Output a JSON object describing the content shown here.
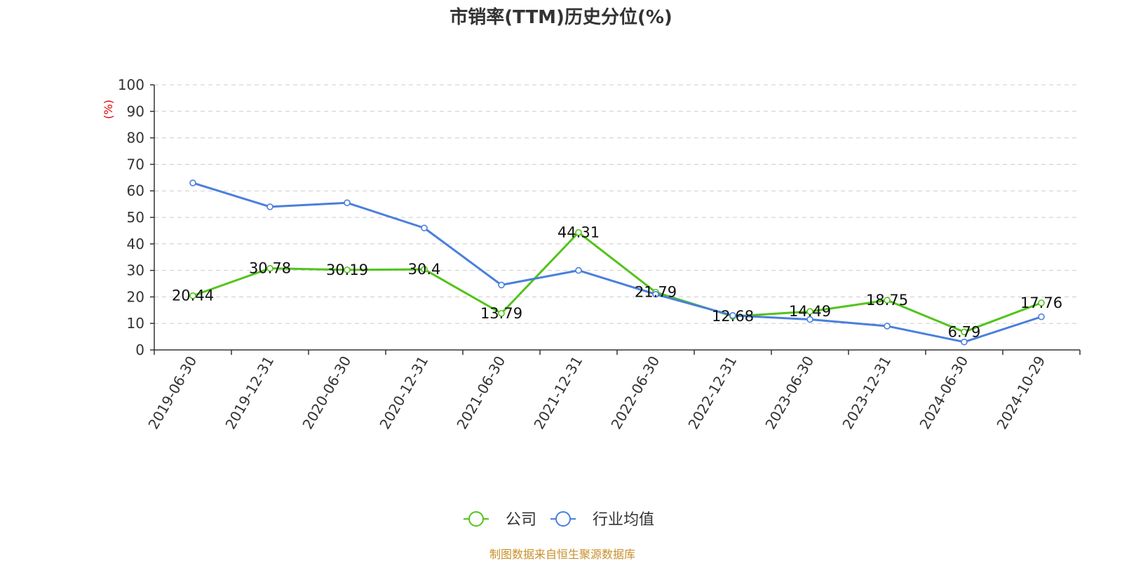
{
  "chart_data": {
    "type": "line",
    "title": "市销率(TTM)历史分位(%)",
    "ylabel": "(%)",
    "ylim": [
      0,
      100
    ],
    "yticks": [
      0,
      10,
      20,
      30,
      40,
      50,
      60,
      70,
      80,
      90,
      100
    ],
    "categories": [
      "2019-06-30",
      "2019-12-31",
      "2020-06-30",
      "2020-12-31",
      "2021-06-30",
      "2021-12-31",
      "2022-06-30",
      "2022-12-31",
      "2023-06-30",
      "2023-12-31",
      "2024-06-30",
      "2024-10-29"
    ],
    "grid": true,
    "legend_position": "bottom",
    "series": [
      {
        "name": "公司",
        "color": "#52c41a",
        "values": [
          20.44,
          30.78,
          30.19,
          30.4,
          13.79,
          44.31,
          21.79,
          12.68,
          14.49,
          18.75,
          6.79,
          17.76
        ],
        "labels": [
          "20.44",
          "30.78",
          "30.19",
          "30.4",
          "13.79",
          "44.31",
          "21.79",
          "12.68",
          "14.49",
          "18.75",
          "6.79",
          "17.76"
        ]
      },
      {
        "name": "行业均值",
        "color": "#4a7fdc",
        "values": [
          63,
          54,
          55.5,
          46,
          24.5,
          30,
          21,
          13,
          11.5,
          9,
          3,
          12.5
        ]
      }
    ]
  },
  "source": "制图数据来自恒生聚源数据库"
}
